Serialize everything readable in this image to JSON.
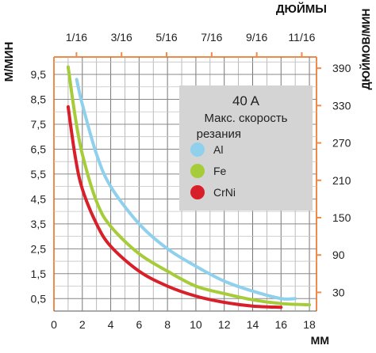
{
  "chart_data": {
    "type": "line",
    "title": "40 A",
    "subtitle": "Макс. скорость резания",
    "x_axis_bottom": {
      "label": "ММ",
      "min": 0,
      "max": 18.5,
      "ticks": [
        0,
        2,
        4,
        6,
        8,
        10,
        12,
        14,
        16,
        18
      ]
    },
    "x_axis_top": {
      "label": "ДЮЙМЫ",
      "ticks": [
        {
          "label": "1/16",
          "mm": 1.5875
        },
        {
          "label": "3/16",
          "mm": 4.7625
        },
        {
          "label": "5/16",
          "mm": 7.9375
        },
        {
          "label": "7/16",
          "mm": 11.1125
        },
        {
          "label": "9/16",
          "mm": 14.2875
        },
        {
          "label": "11/16",
          "mm": 17.4625
        }
      ]
    },
    "y_axis_left": {
      "label": "М/МИН",
      "min": 0,
      "max": 10.2,
      "ticks": [
        0.5,
        1.5,
        2.5,
        3.5,
        4.5,
        5.5,
        6.5,
        7.5,
        8.5,
        9.5
      ],
      "tick_labels": [
        "0,5",
        "1,5",
        "2,5",
        "3,5",
        "4,5",
        "5,5",
        "6,5",
        "7,5",
        "8,5",
        "9,5"
      ]
    },
    "y_axis_right": {
      "label": "ДЮЙМОВ/МИН",
      "ticks": [
        30,
        90,
        150,
        210,
        270,
        330,
        390
      ],
      "tick_labels": [
        "30",
        "90",
        "150",
        "210",
        "270",
        "330",
        "390"
      ]
    },
    "grid": true,
    "legend_position": "top-right",
    "series": [
      {
        "name": "Al",
        "color": "#8fd0ec",
        "x": [
          1.6,
          2,
          3,
          4,
          6,
          8,
          10,
          12,
          14,
          16,
          17
        ],
        "y": [
          9.3,
          8.3,
          6.3,
          5.0,
          3.5,
          2.5,
          1.8,
          1.2,
          0.8,
          0.5,
          0.5
        ]
      },
      {
        "name": "Fe",
        "color": "#a6cc3a",
        "x": [
          1.0,
          1.5,
          2,
          3,
          4,
          6,
          8,
          10,
          12,
          14,
          16,
          18
        ],
        "y": [
          9.8,
          7.8,
          6.3,
          4.4,
          3.4,
          2.3,
          1.6,
          1.0,
          0.7,
          0.45,
          0.3,
          0.25
        ]
      },
      {
        "name": "CrNi",
        "color": "#d8202a",
        "x": [
          1.0,
          1.5,
          2,
          3,
          4,
          6,
          8,
          10,
          12,
          14,
          16
        ],
        "y": [
          8.2,
          6.2,
          4.9,
          3.5,
          2.6,
          1.6,
          1.0,
          0.6,
          0.35,
          0.2,
          0.15
        ]
      }
    ]
  }
}
